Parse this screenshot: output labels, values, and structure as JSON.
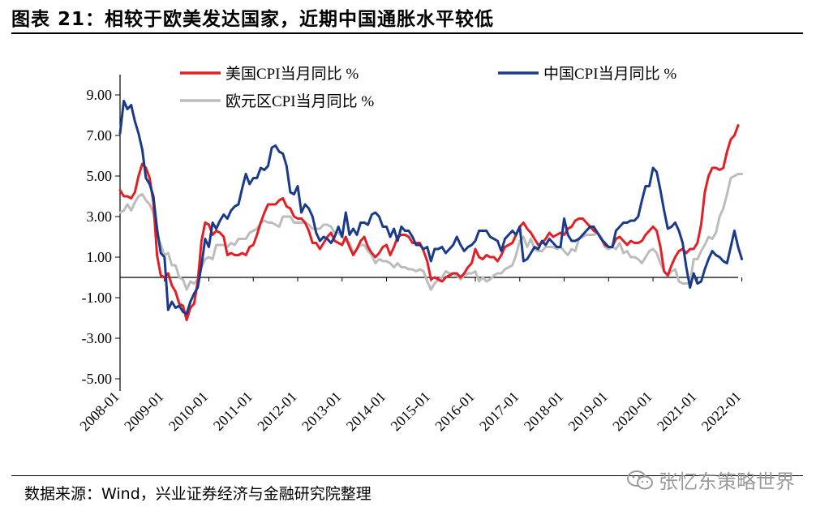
{
  "header": {
    "title": "图表 21：相较于欧美发达国家，近期中国通胀水平较低"
  },
  "footer": {
    "source": "数据来源：Wind，兴业证券经济与金融研究院整理",
    "watermark": "张忆东策略世界",
    "watermark_icon": "wechat-icon"
  },
  "chart_data": {
    "type": "line",
    "title": "",
    "xlabel": "",
    "ylabel": "",
    "ylim": [
      -5,
      9.8
    ],
    "yticks": [
      9,
      7,
      5,
      3,
      1,
      -1,
      -3,
      -5
    ],
    "ytick_labels": [
      "9.00",
      "7.00",
      "5.00",
      "3.00",
      "1.00",
      "-1.00",
      "-3.00",
      "-5.00"
    ],
    "xticks": [
      "2008-01",
      "2009-01",
      "2010-01",
      "2011-01",
      "2012-01",
      "2013-01",
      "2014-01",
      "2015-01",
      "2016-01",
      "2017-01",
      "2018-01",
      "2019-01",
      "2020-01",
      "2021-01",
      "2022-01"
    ],
    "x_start": "2008-01",
    "x_end": "2022-05",
    "grid": false,
    "legend_position": "top",
    "series": [
      {
        "name": "美国CPI当月同比 %",
        "color": "#e31e24",
        "values": [
          4.3,
          4.0,
          4.0,
          3.9,
          4.2,
          5.0,
          5.6,
          5.4,
          4.9,
          3.7,
          1.1,
          0.1,
          0.0,
          0.2,
          -0.4,
          -0.7,
          -1.3,
          -1.4,
          -2.1,
          -1.5,
          -1.3,
          -0.2,
          1.8,
          2.7,
          2.6,
          2.1,
          2.3,
          2.2,
          2.0,
          1.1,
          1.2,
          1.1,
          1.1,
          1.2,
          1.1,
          1.5,
          1.6,
          2.1,
          2.7,
          3.2,
          3.6,
          3.6,
          3.6,
          3.8,
          3.9,
          3.5,
          3.4,
          3.0,
          2.9,
          2.9,
          2.7,
          2.3,
          1.7,
          1.7,
          1.4,
          1.7,
          2.0,
          2.2,
          1.8,
          1.7,
          1.6,
          2.0,
          1.5,
          1.1,
          1.4,
          1.8,
          2.0,
          1.5,
          1.2,
          1.0,
          1.2,
          1.5,
          1.6,
          1.1,
          1.5,
          2.0,
          2.1,
          2.1,
          2.0,
          1.7,
          1.7,
          1.7,
          1.3,
          0.8,
          -0.1,
          0.0,
          -0.1,
          -0.2,
          0.0,
          0.1,
          0.2,
          0.2,
          0.0,
          0.2,
          0.5,
          0.7,
          1.4,
          1.0,
          0.9,
          1.1,
          1.0,
          1.0,
          0.8,
          1.1,
          1.5,
          1.6,
          1.7,
          2.1,
          2.5,
          2.7,
          2.4,
          2.2,
          1.9,
          1.6,
          1.7,
          1.9,
          2.2,
          2.0,
          2.1,
          2.2,
          2.1,
          2.4,
          2.5,
          2.8,
          2.9,
          2.9,
          2.7,
          2.5,
          2.3,
          2.2,
          1.9,
          1.6,
          1.5,
          1.5,
          1.9,
          2.0,
          1.8,
          1.6,
          1.8,
          1.7,
          1.7,
          1.8,
          2.1,
          2.3,
          2.5,
          2.3,
          1.5,
          0.3,
          0.1,
          0.6,
          1.0,
          1.3,
          1.4,
          1.2,
          1.4,
          1.4,
          1.7,
          2.6,
          4.2,
          5.0,
          5.4,
          5.4,
          5.3,
          5.4,
          6.2,
          6.8,
          7.0,
          7.5
        ]
      },
      {
        "name": "中国CPI当月同比 %",
        "color": "#1a3a8c",
        "values": [
          7.1,
          8.7,
          8.3,
          8.5,
          7.7,
          7.1,
          6.3,
          4.9,
          4.6,
          4.0,
          2.4,
          1.2,
          1.0,
          -1.6,
          -1.2,
          -1.5,
          -1.4,
          -1.7,
          -1.8,
          -1.2,
          -0.8,
          -0.5,
          0.6,
          1.9,
          1.5,
          2.7,
          2.4,
          2.8,
          3.1,
          2.9,
          3.3,
          3.5,
          3.6,
          4.4,
          5.1,
          4.6,
          4.9,
          4.9,
          5.4,
          5.3,
          5.5,
          6.4,
          6.5,
          6.2,
          6.1,
          5.5,
          4.2,
          4.1,
          4.5,
          3.2,
          3.6,
          3.4,
          3.0,
          2.2,
          1.8,
          2.0,
          1.9,
          1.7,
          2.0,
          2.5,
          2.0,
          3.2,
          2.1,
          2.4,
          2.1,
          2.7,
          2.7,
          2.6,
          3.1,
          3.2,
          3.0,
          2.5,
          2.5,
          2.0,
          2.4,
          1.8,
          2.5,
          2.3,
          2.3,
          2.0,
          1.6,
          1.6,
          1.4,
          1.5,
          0.8,
          1.4,
          1.4,
          1.5,
          1.2,
          1.4,
          1.6,
          2.0,
          1.6,
          1.3,
          1.5,
          1.6,
          1.8,
          2.3,
          2.3,
          2.3,
          2.0,
          1.9,
          1.8,
          1.3,
          1.9,
          2.1,
          2.3,
          2.1,
          2.5,
          0.8,
          0.9,
          1.2,
          1.5,
          1.4,
          1.8,
          1.6,
          1.9,
          1.7,
          1.5,
          1.5,
          2.9,
          2.1,
          1.8,
          1.8,
          1.9,
          2.1,
          2.3,
          2.5,
          2.5,
          2.2,
          1.9,
          1.7,
          1.5,
          1.5,
          2.3,
          2.5,
          2.7,
          2.7,
          2.8,
          2.8,
          3.0,
          3.8,
          4.5,
          4.5,
          5.4,
          5.2,
          4.3,
          3.3,
          2.4,
          2.5,
          2.7,
          2.3,
          1.7,
          0.5,
          -0.5,
          0.2,
          -0.3,
          -0.2,
          0.4,
          0.9,
          1.3,
          1.1,
          1.0,
          0.8,
          0.7,
          1.5,
          2.3,
          1.5,
          0.9
        ]
      },
      {
        "name": "欧元区CPI当月同比 %",
        "color": "#bcbcbc",
        "values": [
          3.2,
          3.3,
          3.6,
          3.3,
          3.7,
          4.0,
          4.1,
          3.8,
          3.6,
          3.2,
          2.1,
          1.6,
          1.1,
          1.2,
          0.6,
          0.6,
          0.0,
          -0.1,
          -0.6,
          -0.2,
          -0.3,
          -0.1,
          0.5,
          0.9,
          1.0,
          0.9,
          1.6,
          1.6,
          1.6,
          1.5,
          1.7,
          1.6,
          1.9,
          1.9,
          1.9,
          2.2,
          2.3,
          2.4,
          2.7,
          2.8,
          2.7,
          2.7,
          2.6,
          2.5,
          3.0,
          3.0,
          3.0,
          2.7,
          2.7,
          2.7,
          2.7,
          2.6,
          2.4,
          2.4,
          2.4,
          2.6,
          2.6,
          2.5,
          2.2,
          2.2,
          2.0,
          1.8,
          1.7,
          1.2,
          1.4,
          1.6,
          1.6,
          1.3,
          1.1,
          0.7,
          0.9,
          0.8,
          0.8,
          0.7,
          0.5,
          0.7,
          0.5,
          0.5,
          0.4,
          0.4,
          0.3,
          0.4,
          0.3,
          -0.2,
          -0.6,
          -0.3,
          -0.1,
          0.0,
          0.3,
          0.2,
          0.2,
          0.1,
          -0.1,
          0.1,
          0.2,
          0.2,
          0.3,
          -0.2,
          0.0,
          -0.2,
          -0.1,
          0.1,
          0.2,
          0.2,
          0.4,
          0.5,
          0.6,
          1.1,
          1.8,
          2.0,
          1.5,
          1.9,
          1.4,
          1.3,
          1.3,
          1.5,
          1.5,
          1.5,
          1.4,
          1.5,
          1.3,
          1.1,
          1.4,
          1.3,
          1.9,
          2.0,
          2.1,
          2.1,
          2.1,
          2.2,
          2.0,
          1.5,
          1.4,
          1.5,
          1.4,
          1.7,
          1.2,
          1.3,
          1.0,
          1.0,
          0.9,
          0.7,
          1.0,
          1.3,
          1.4,
          1.2,
          0.7,
          0.3,
          0.1,
          0.3,
          0.4,
          -0.2,
          -0.3,
          -0.3,
          -0.3,
          0.9,
          0.9,
          1.3,
          1.6,
          2.0,
          1.9,
          2.2,
          3.0,
          3.4,
          4.1,
          4.9,
          5.0,
          5.1,
          5.1
        ]
      }
    ]
  }
}
